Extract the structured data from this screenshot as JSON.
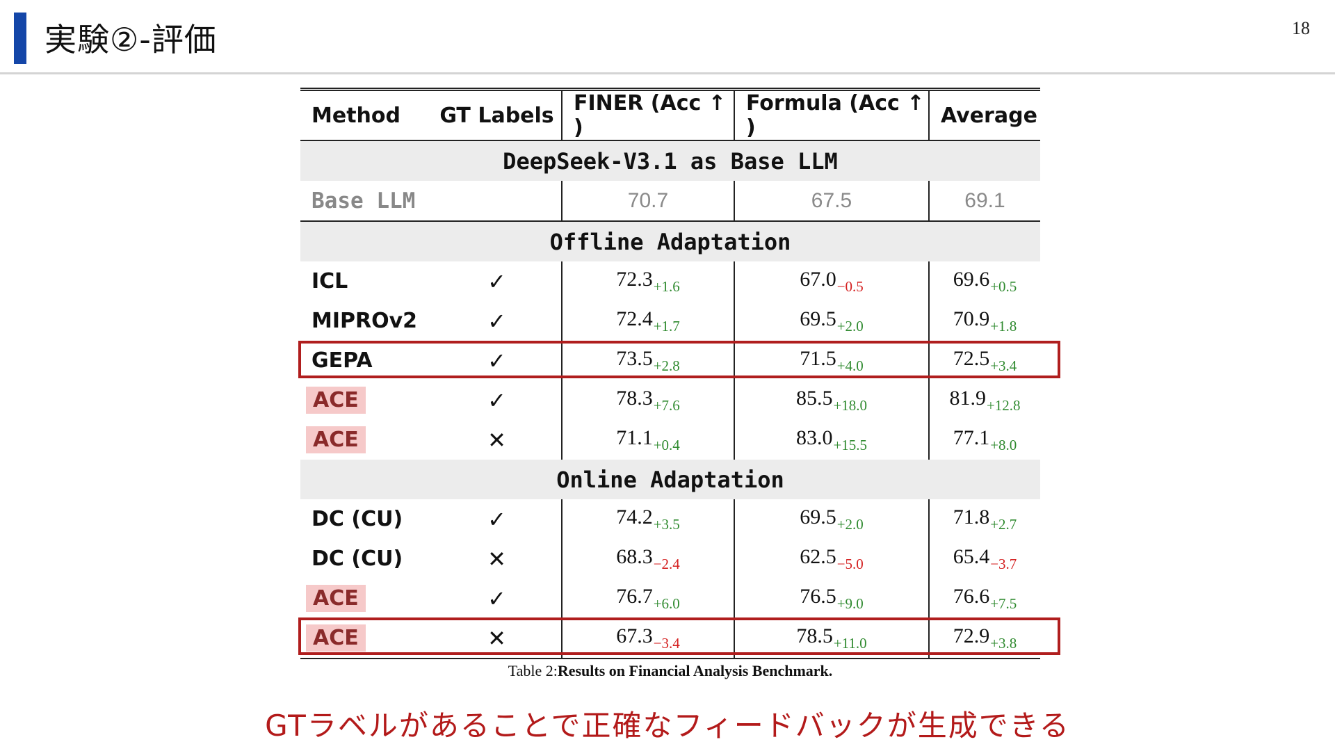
{
  "slide": {
    "title": "実験②-評価",
    "page_number": "18",
    "accent_color": "#1446a8",
    "note": "GTラベルがあることで正確なフィードバックが生成できる",
    "note_color": "#b31a1a"
  },
  "table": {
    "headers": [
      "Method",
      "GT Labels",
      "FINER (Acc ↑ )",
      "Formula (Acc ↑ )",
      "Average"
    ],
    "sections": {
      "base_llm_title": "DeepSeek-V3.1 as Base LLM",
      "offline_title": "Offline Adaptation",
      "online_title": "Online Adaptation"
    },
    "base_row": {
      "method": "Base LLM",
      "finer": "70.7",
      "formula": "67.5",
      "average": "69.1"
    },
    "offline_rows": [
      {
        "method": "ICL",
        "gt": "✓",
        "finer": "72.3",
        "finer_d": "+1.6",
        "formula": "67.0",
        "formula_d": "−0.5",
        "avg": "69.6",
        "avg_d": "+0.5"
      },
      {
        "method": "MIPROv2",
        "gt": "✓",
        "finer": "72.4",
        "finer_d": "+1.7",
        "formula": "69.5",
        "formula_d": "+2.0",
        "avg": "70.9",
        "avg_d": "+1.8"
      },
      {
        "method": "GEPA",
        "gt": "✓",
        "finer": "73.5",
        "finer_d": "+2.8",
        "formula": "71.5",
        "formula_d": "+4.0",
        "avg": "72.5",
        "avg_d": "+3.4"
      },
      {
        "method": "ACE",
        "gt": "✓",
        "finer": "78.3",
        "finer_d": "+7.6",
        "formula": "85.5",
        "formula_d": "+18.0",
        "avg": "81.9",
        "avg_d": "+12.8"
      },
      {
        "method": "ACE",
        "gt": "✕",
        "finer": "71.1",
        "finer_d": "+0.4",
        "formula": "83.0",
        "formula_d": "+15.5",
        "avg": "77.1",
        "avg_d": "+8.0"
      }
    ],
    "online_rows": [
      {
        "method": "DC (CU)",
        "gt": "✓",
        "finer": "74.2",
        "finer_d": "+3.5",
        "formula": "69.5",
        "formula_d": "+2.0",
        "avg": "71.8",
        "avg_d": "+2.7"
      },
      {
        "method": "DC (CU)",
        "gt": "✕",
        "finer": "68.3",
        "finer_d": "−2.4",
        "formula": "62.5",
        "formula_d": "−5.0",
        "avg": "65.4",
        "avg_d": "−3.7"
      },
      {
        "method": "ACE",
        "gt": "✓",
        "finer": "76.7",
        "finer_d": "+6.0",
        "formula": "76.5",
        "formula_d": "+9.0",
        "avg": "76.6",
        "avg_d": "+7.5"
      },
      {
        "method": "ACE",
        "gt": "✕",
        "finer": "67.3",
        "finer_d": "−3.4",
        "formula": "78.5",
        "formula_d": "+11.0",
        "avg": "72.9",
        "avg_d": "+3.8"
      }
    ],
    "caption_prefix": "Table 2:",
    "caption_bold": "Results on Financial Analysis Benchmark.",
    "positive_color": "#2f8a2f",
    "negative_color": "#d42020",
    "highlight_color": "#b01e1e"
  }
}
